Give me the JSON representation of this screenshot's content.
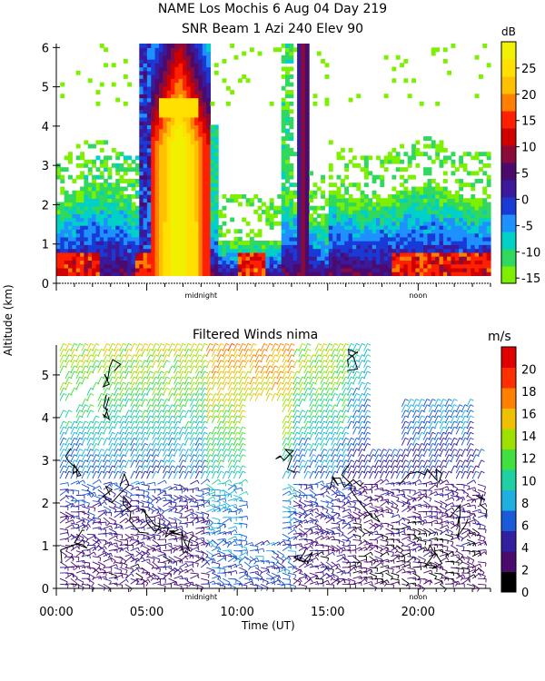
{
  "title": {
    "line1": "NAME Los Mochis     6 Aug 04 Day 219",
    "line2": "SNR Beam 1 Azi 240 Elev 90"
  },
  "y_axis_label": "Altitude (km)",
  "x_axis_label": "Time (UT)",
  "colors": {
    "scale": [
      "#000000",
      "#4b0a6e",
      "#2a1a9a",
      "#1a3ad8",
      "#1e90ff",
      "#00d0c8",
      "#30d860",
      "#7cf000",
      "#d8f000",
      "#ffc000",
      "#ff8000",
      "#ff2000",
      "#d00000"
    ],
    "white": "#ffffff"
  },
  "chart_data": [
    {
      "type": "heatmap",
      "title": "SNR Beam 1 Azi 240 Elev 90",
      "ylabel": "Altitude (km)",
      "ylim": [
        0,
        6.1
      ],
      "xlim": [
        0,
        24
      ],
      "yticks": [
        "0",
        "1",
        "2",
        "3",
        "4",
        "5",
        "6"
      ],
      "x_annotations": [
        "midnight",
        "noon"
      ],
      "colorbar": {
        "unit": "dB",
        "ticks": [
          "25",
          "20",
          "15",
          "10",
          "5",
          "0",
          "-5",
          "-10",
          "-15"
        ],
        "range": [
          -16,
          30
        ],
        "colors": [
          "#7cf000",
          "#30d860",
          "#00d0c8",
          "#1e90ff",
          "#1a3ad8",
          "#3a1a9a",
          "#4b0a6e",
          "#8a0a3a",
          "#d00000",
          "#ff2000",
          "#ff8000",
          "#ffc000",
          "#ffe000",
          "#f0f000"
        ]
      },
      "features": [
        {
          "name": "strong band",
          "x": [
            5.2,
            8.4
          ],
          "y": [
            0.2,
            6.1
          ],
          "peak_db": 28
        },
        {
          "name": "noise band",
          "x": [
            13.3,
            14.0
          ],
          "y": [
            0.2,
            6.1
          ],
          "peak_db": 5
        },
        {
          "name": "boundary layer",
          "x": [
            0,
            24
          ],
          "y": [
            0.2,
            2.8
          ],
          "peak_db": 10
        }
      ]
    },
    {
      "type": "scatter",
      "title": "Filtered Winds nima",
      "xlabel": "Time (UT)",
      "ylabel": "Altitude (km)",
      "ylim": [
        0,
        5.7
      ],
      "xlim": [
        0,
        24
      ],
      "yticks": [
        "0",
        "1",
        "2",
        "3",
        "4",
        "5"
      ],
      "xticks": [
        "00:00",
        "05:00",
        "10:00",
        "15:00",
        "20:00"
      ],
      "x_annotations": [
        "midnight",
        "noon"
      ],
      "colorbar": {
        "unit": "m/s",
        "ticks": [
          "20",
          "18",
          "16",
          "14",
          "12",
          "10",
          "8",
          "6",
          "4",
          "2",
          "0"
        ],
        "range": [
          0,
          22
        ],
        "colors": [
          "#000000",
          "#4b0a6e",
          "#3020a0",
          "#1a5ad8",
          "#1eb0e0",
          "#20d0a0",
          "#40e040",
          "#a0e000",
          "#f0c000",
          "#ff8000",
          "#ff3000",
          "#e00000"
        ]
      },
      "wind_speed_profile": [
        {
          "alt": 0.5,
          "speed": 3
        },
        {
          "alt": 1.5,
          "speed": 4
        },
        {
          "alt": 2.5,
          "speed": 6
        },
        {
          "alt": 3.5,
          "speed": 9
        },
        {
          "alt": 4.5,
          "speed": 12
        },
        {
          "alt": 5.5,
          "speed": 14
        }
      ]
    }
  ]
}
